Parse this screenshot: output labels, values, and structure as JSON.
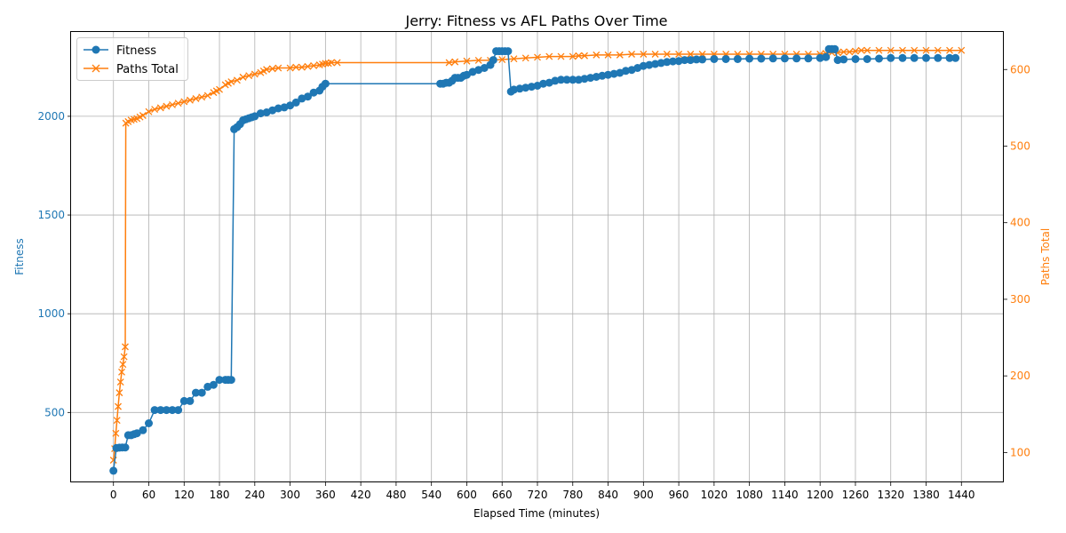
{
  "chart_data": {
    "type": "line",
    "title": "Jerry: Fitness vs AFL Paths Over Time",
    "xlabel": "Elapsed Time (minutes)",
    "ylabel_left": "Fitness",
    "ylabel_right": "Paths Total",
    "xlim": [
      -72,
      1512
    ],
    "ylim_left": [
      146,
      2427
    ],
    "ylim_right": [
      61,
      649
    ],
    "xticks": [
      "0",
      "60",
      "120",
      "180",
      "240",
      "300",
      "360",
      "420",
      "480",
      "540",
      "600",
      "660",
      "720",
      "780",
      "840",
      "900",
      "960",
      "1020",
      "1080",
      "1140",
      "1200",
      "1260",
      "1320",
      "1380",
      "1440"
    ],
    "yticks_left": [
      "500",
      "1000",
      "1500",
      "2000"
    ],
    "yticks_right": [
      "100",
      "200",
      "300",
      "400",
      "500",
      "600"
    ],
    "grid": true,
    "legend_position": "top-left",
    "colors": {
      "fitness": "#1f77b4",
      "paths": "#ff7f0e"
    },
    "series": [
      {
        "name": "Fitness",
        "axis": "left",
        "marker": "circle",
        "color": "#1f77b4",
        "x": [
          0,
          5,
          10,
          15,
          20,
          25,
          30,
          35,
          40,
          50,
          60,
          70,
          80,
          90,
          100,
          110,
          120,
          130,
          140,
          150,
          160,
          170,
          180,
          190,
          195,
          200,
          205,
          210,
          215,
          220,
          225,
          230,
          235,
          240,
          250,
          260,
          270,
          280,
          290,
          300,
          310,
          320,
          330,
          340,
          350,
          355,
          360,
          555,
          560,
          565,
          570,
          575,
          580,
          585,
          590,
          595,
          600,
          610,
          620,
          630,
          640,
          645,
          650,
          655,
          660,
          665,
          670,
          675,
          680,
          690,
          700,
          710,
          720,
          730,
          740,
          750,
          760,
          770,
          780,
          790,
          800,
          810,
          820,
          830,
          840,
          850,
          860,
          870,
          880,
          890,
          900,
          910,
          920,
          930,
          940,
          950,
          960,
          970,
          980,
          990,
          1000,
          1020,
          1040,
          1060,
          1080,
          1100,
          1120,
          1140,
          1160,
          1180,
          1200,
          1210,
          1215,
          1220,
          1225,
          1230,
          1240,
          1260,
          1280,
          1300,
          1320,
          1340,
          1360,
          1380,
          1400,
          1420,
          1430
        ],
        "y": [
          205,
          320,
          322,
          323,
          323,
          385,
          385,
          390,
          395,
          410,
          445,
          512,
          512,
          512,
          512,
          512,
          558,
          558,
          600,
          600,
          630,
          640,
          665,
          665,
          665,
          665,
          1935,
          1945,
          1960,
          1980,
          1985,
          1990,
          1995,
          2000,
          2015,
          2020,
          2030,
          2040,
          2045,
          2055,
          2070,
          2090,
          2100,
          2120,
          2130,
          2150,
          2165,
          2165,
          2165,
          2170,
          2170,
          2180,
          2195,
          2195,
          2195,
          2205,
          2210,
          2225,
          2235,
          2245,
          2260,
          2285,
          2330,
          2330,
          2330,
          2330,
          2330,
          2125,
          2135,
          2140,
          2145,
          2150,
          2155,
          2165,
          2170,
          2180,
          2185,
          2185,
          2185,
          2185,
          2190,
          2195,
          2200,
          2205,
          2210,
          2215,
          2220,
          2230,
          2235,
          2245,
          2255,
          2260,
          2265,
          2270,
          2275,
          2278,
          2280,
          2285,
          2285,
          2288,
          2288,
          2290,
          2290,
          2290,
          2292,
          2292,
          2293,
          2293,
          2293,
          2293,
          2295,
          2300,
          2340,
          2340,
          2340,
          2285,
          2288,
          2290,
          2290,
          2292,
          2295,
          2295,
          2295,
          2295,
          2295,
          2295,
          2295
        ]
      },
      {
        "name": "Paths Total",
        "axis": "right",
        "marker": "x",
        "color": "#ff7f0e",
        "x": [
          0,
          2,
          4,
          6,
          8,
          10,
          12,
          14,
          16,
          18,
          20,
          21,
          25,
          30,
          35,
          40,
          45,
          50,
          60,
          70,
          80,
          90,
          100,
          110,
          120,
          130,
          140,
          150,
          160,
          170,
          175,
          180,
          190,
          195,
          200,
          210,
          220,
          230,
          240,
          250,
          255,
          260,
          270,
          280,
          300,
          310,
          320,
          330,
          340,
          350,
          355,
          360,
          365,
          370,
          380,
          570,
          580,
          600,
          620,
          640,
          660,
          680,
          700,
          720,
          740,
          760,
          780,
          790,
          800,
          820,
          840,
          860,
          880,
          900,
          920,
          940,
          960,
          980,
          1000,
          1020,
          1040,
          1060,
          1080,
          1100,
          1120,
          1140,
          1160,
          1180,
          1200,
          1210,
          1220,
          1230,
          1240,
          1250,
          1260,
          1270,
          1280,
          1300,
          1320,
          1340,
          1360,
          1380,
          1400,
          1420,
          1440
        ],
        "y": [
          90,
          105,
          125,
          142,
          160,
          178,
          192,
          205,
          215,
          225,
          238,
          530,
          532,
          534,
          535,
          536,
          538,
          540,
          545,
          548,
          550,
          552,
          554,
          556,
          558,
          560,
          562,
          564,
          566,
          570,
          572,
          574,
          580,
          582,
          584,
          586,
          590,
          592,
          594,
          596,
          598,
          600,
          601,
          602,
          602,
          603,
          603,
          604,
          605,
          606,
          607,
          608,
          608,
          609,
          609,
          609,
          610,
          611,
          612,
          612,
          613,
          614,
          615,
          616,
          617,
          617,
          617,
          618,
          618,
          619,
          619,
          619,
          620,
          620,
          620,
          620,
          620,
          620,
          620,
          620,
          620,
          620,
          620,
          620,
          620,
          620,
          620,
          620,
          620,
          621,
          622,
          622,
          623,
          623,
          624,
          625,
          625,
          625,
          625,
          625,
          625,
          625,
          625,
          625,
          625
        ]
      }
    ]
  }
}
